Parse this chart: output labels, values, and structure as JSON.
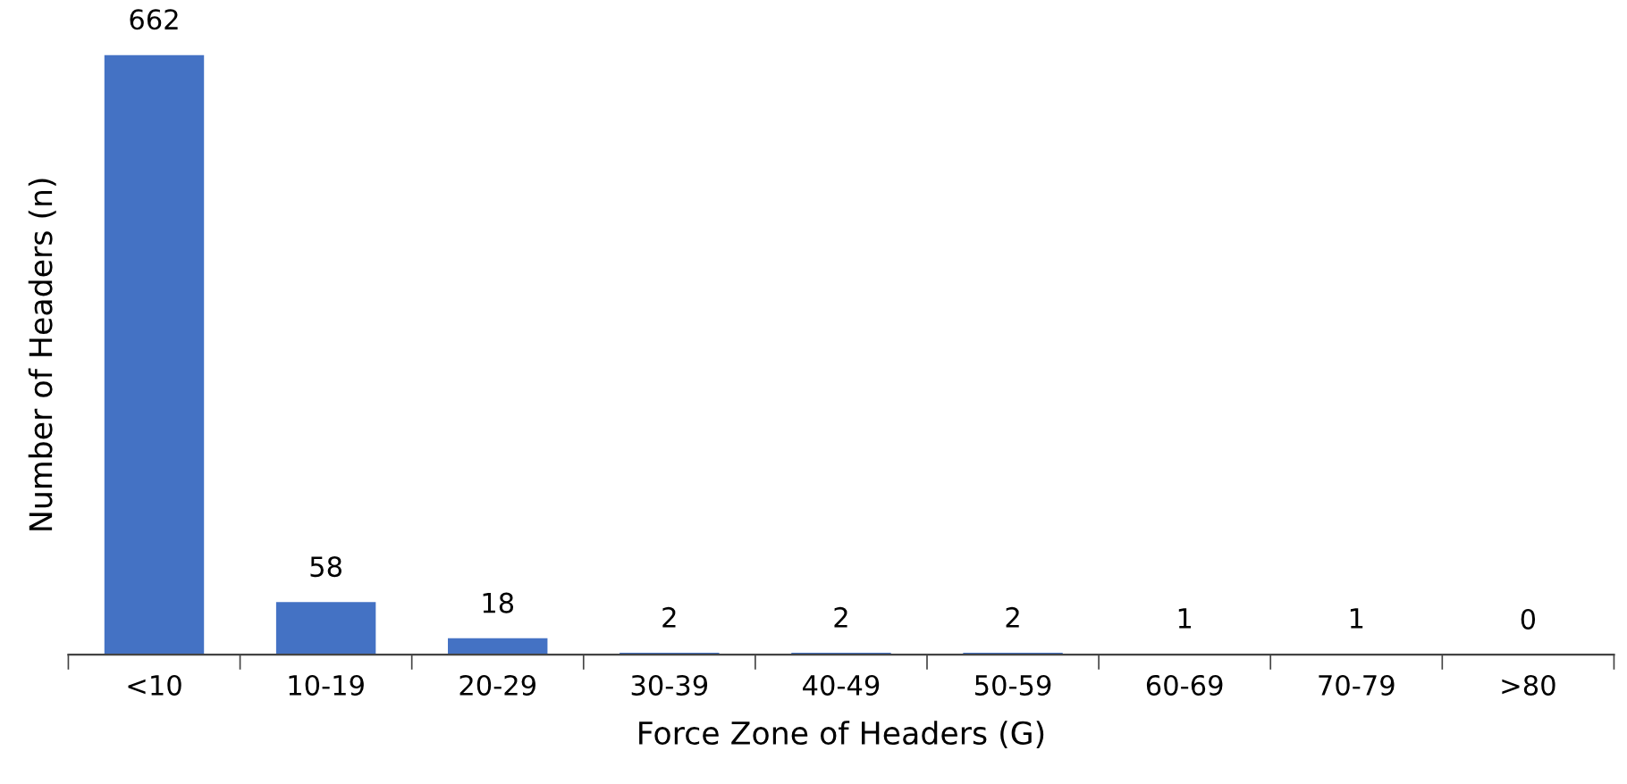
{
  "chart_data": {
    "type": "bar",
    "xlabel": "Force Zone of Headers (G)",
    "ylabel": "Number of Headers (n)",
    "categories": [
      "<10",
      "10-19",
      "20-29",
      "30-39",
      "40-49",
      "50-59",
      "60-69",
      "70-79",
      ">80"
    ],
    "values": [
      662,
      58,
      18,
      2,
      2,
      2,
      1,
      1,
      0
    ],
    "color": "#4472c4",
    "data_labels": true,
    "grid": false,
    "legend": false,
    "tick_labels": "x"
  }
}
